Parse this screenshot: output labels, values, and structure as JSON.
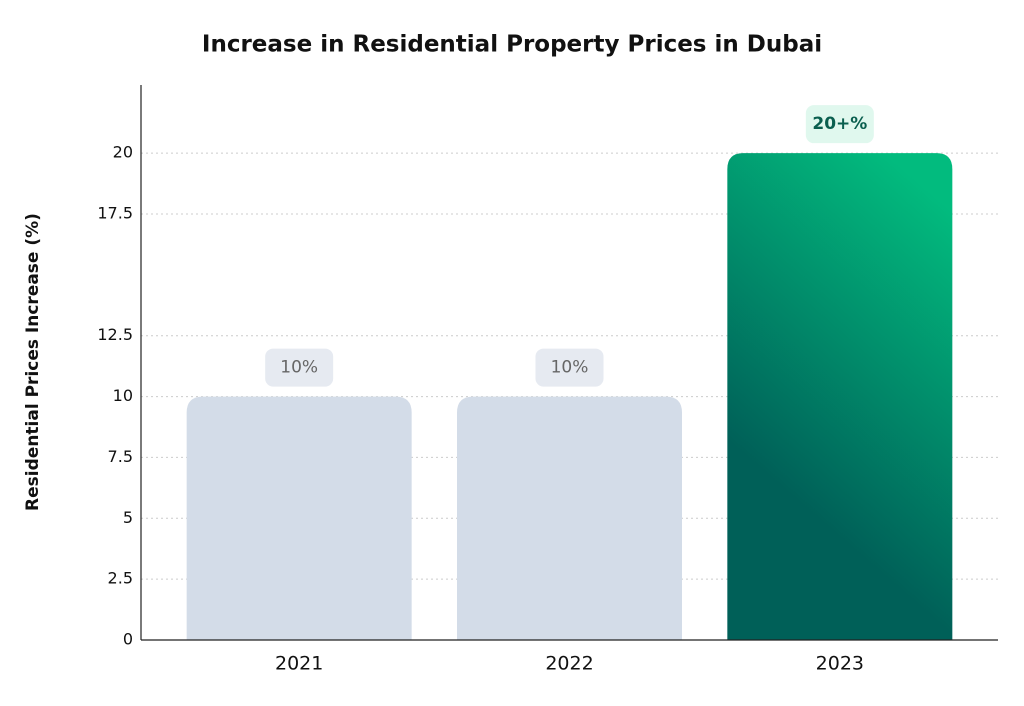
{
  "chart_data": {
    "type": "bar",
    "title": "Increase in Residential Property Prices in Dubai",
    "y_label": "Residential Prices Increase (%)",
    "categories": [
      "2021",
      "2022",
      "2023"
    ],
    "values": [
      10,
      10,
      20
    ],
    "value_labels": [
      "10%",
      "10%",
      "20+%"
    ],
    "colors": [
      "#d3dce8",
      "#d3dce8",
      "#03a373"
    ],
    "ylim": [
      0,
      22.8
    ],
    "yticks": [
      0,
      2.5,
      5.0,
      7.5,
      10.0,
      12.5,
      17.5,
      20.0
    ],
    "grid": true
  }
}
